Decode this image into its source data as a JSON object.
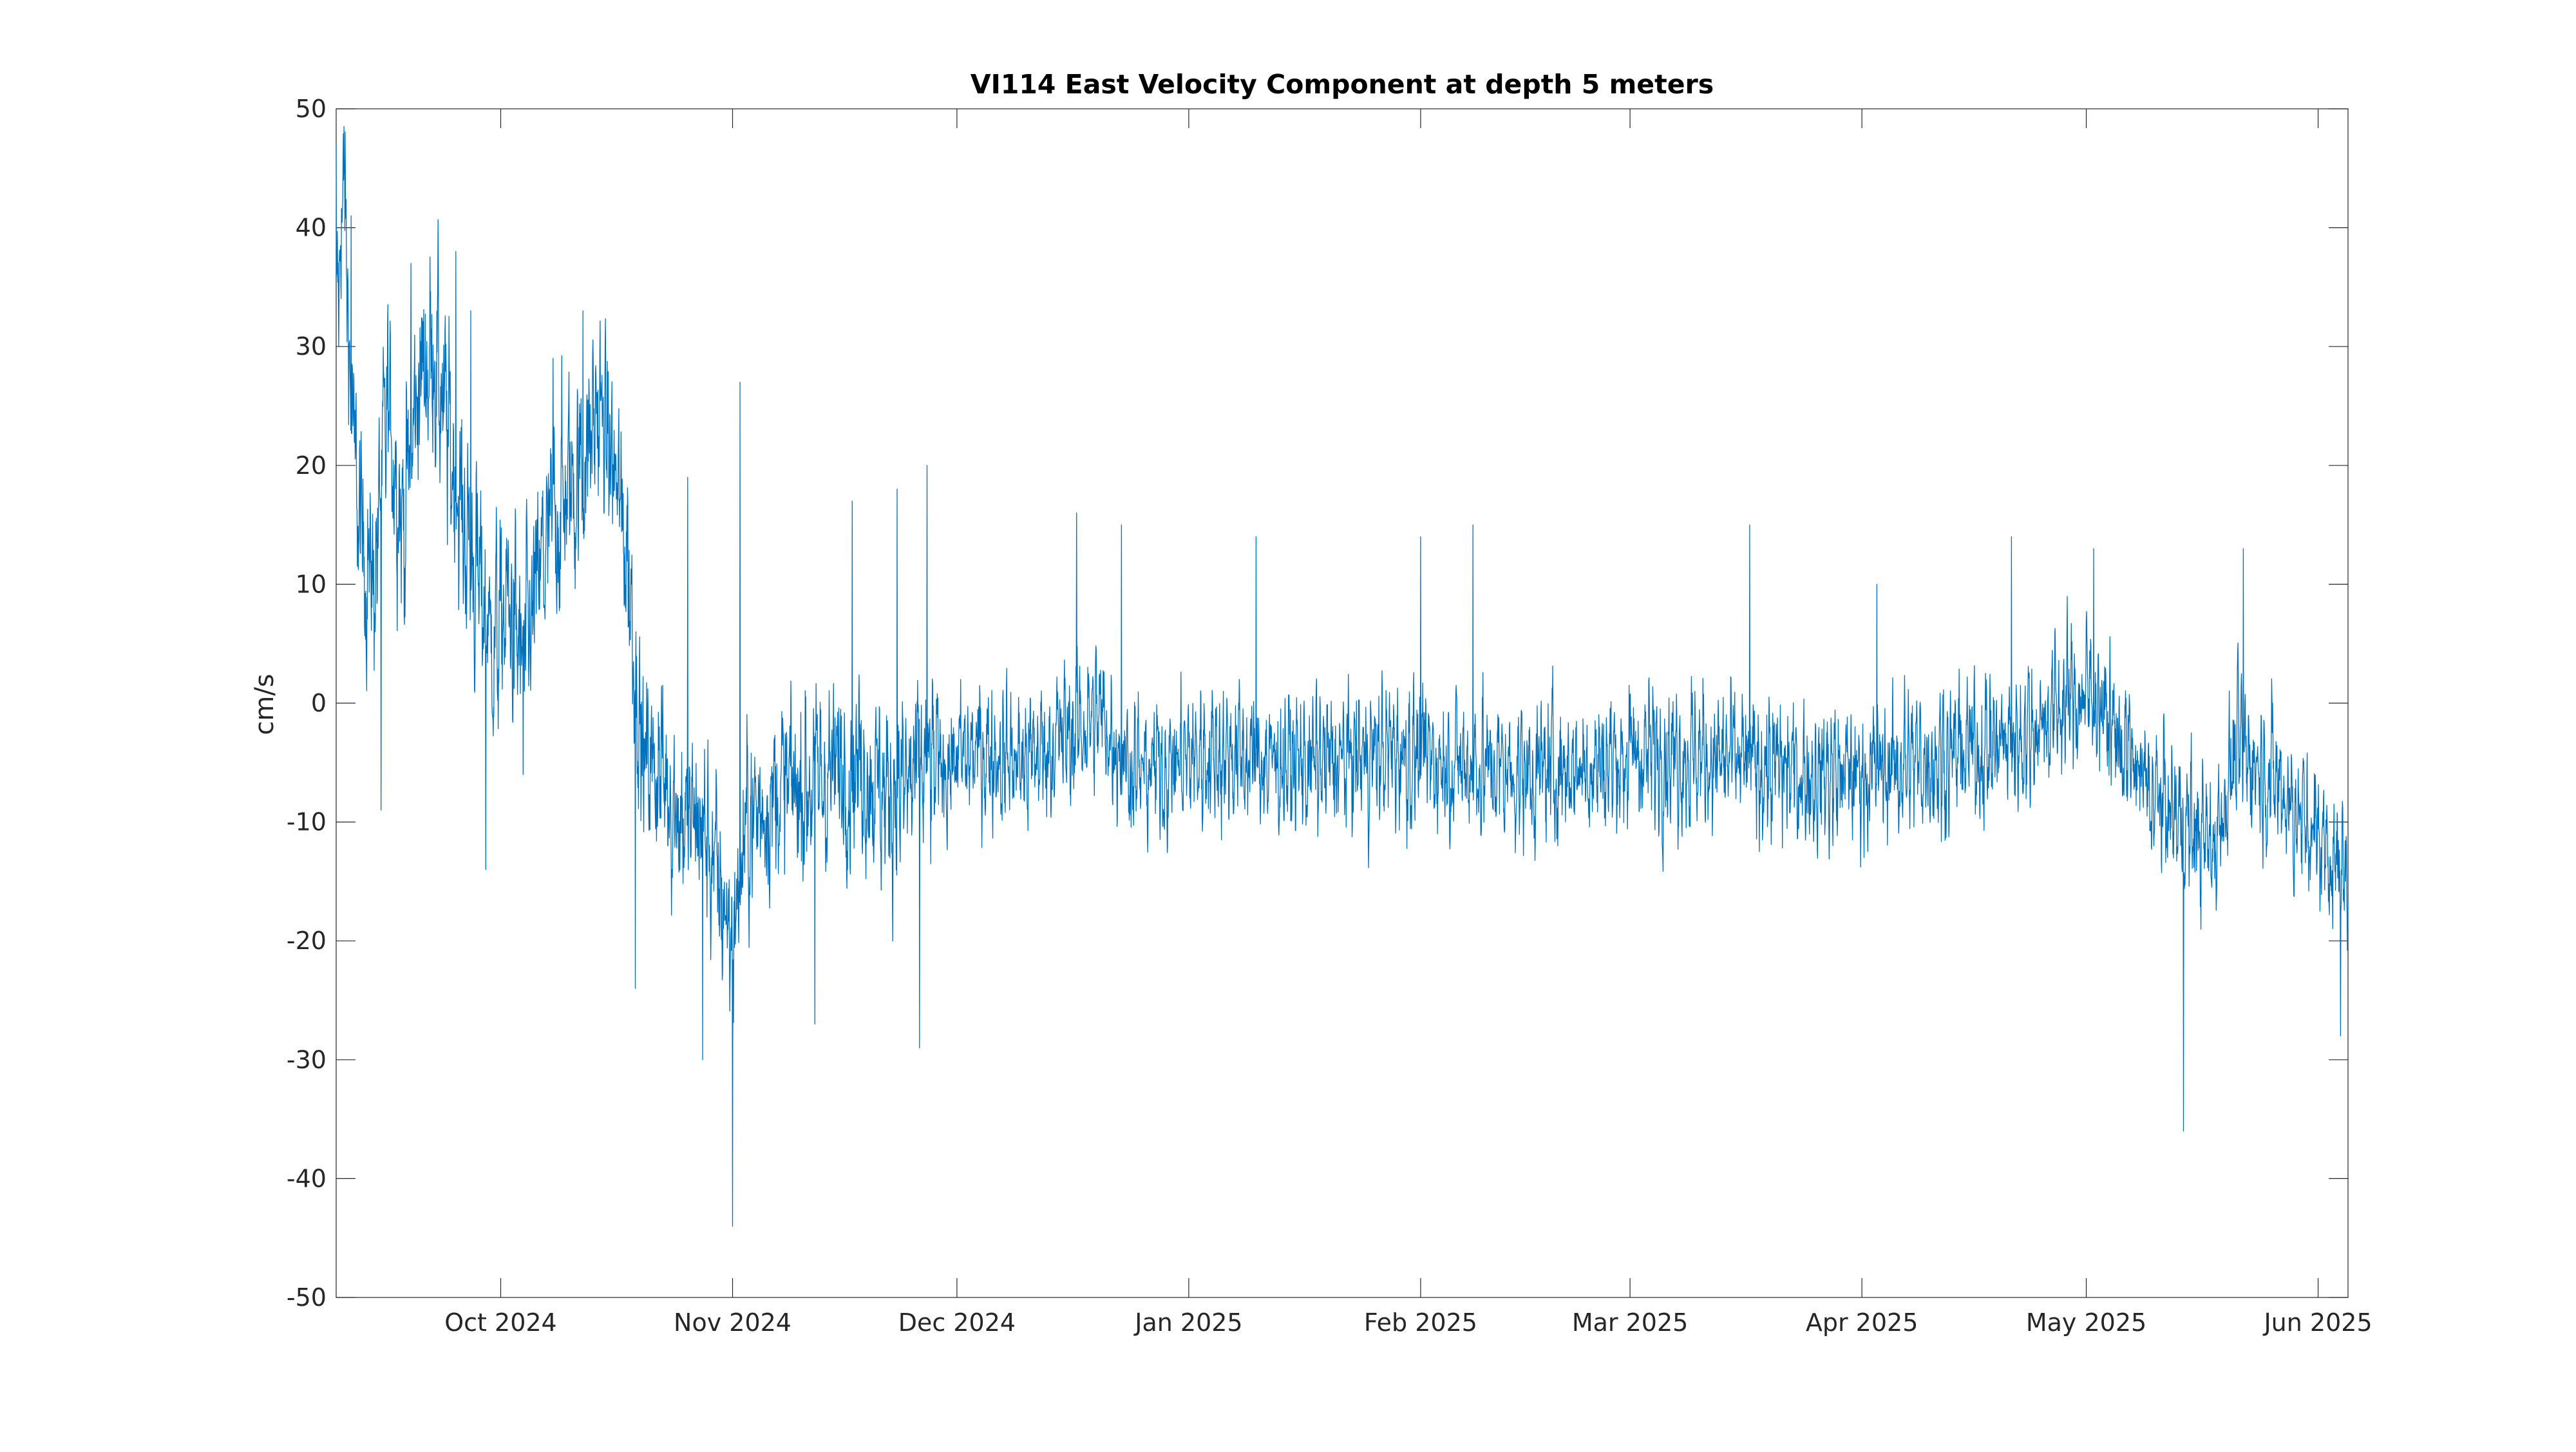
{
  "chart_data": {
    "type": "line",
    "title": "VI114 East Velocity Component at depth 5 meters",
    "xlabel": "",
    "ylabel": "cm/s",
    "x_range": [
      "2024-09-09",
      "2025-06-05"
    ],
    "ylim": [
      -50,
      50
    ],
    "y_ticks": [
      50,
      40,
      30,
      20,
      10,
      0,
      -10,
      -20,
      -30,
      -40,
      -50
    ],
    "y_tick_labels": [
      "50",
      "40",
      "30",
      "20",
      "10",
      "0",
      "-10",
      "-20",
      "-30",
      "-40",
      "-50"
    ],
    "x_ticks": [
      {
        "date": "2024-10-01",
        "label": "Oct 2024"
      },
      {
        "date": "2024-11-01",
        "label": "Nov 2024"
      },
      {
        "date": "2024-12-01",
        "label": "Dec 2024"
      },
      {
        "date": "2025-01-01",
        "label": "Jan 2025"
      },
      {
        "date": "2025-02-01",
        "label": "Feb 2025"
      },
      {
        "date": "2025-03-01",
        "label": "Mar 2025"
      },
      {
        "date": "2025-04-01",
        "label": "Apr 2025"
      },
      {
        "date": "2025-05-01",
        "label": "May 2025"
      },
      {
        "date": "2025-06-01",
        "label": "Jun 2025"
      }
    ],
    "grid": false,
    "box": true,
    "series": [
      {
        "name": "",
        "color": "#0072BD",
        "points": [
          [
            "2024-09-09",
            30
          ],
          [
            "2024-09-10",
            45
          ],
          [
            "2024-09-11",
            25
          ],
          [
            "2024-09-12",
            15
          ],
          [
            "2024-09-14",
            10
          ],
          [
            "2024-09-16",
            25
          ],
          [
            "2024-09-18",
            15
          ],
          [
            "2024-09-20",
            27
          ],
          [
            "2024-09-22",
            30
          ],
          [
            "2024-09-24",
            22
          ],
          [
            "2024-09-26",
            15
          ],
          [
            "2024-09-28",
            10
          ],
          [
            "2024-09-30",
            5
          ],
          [
            "2024-10-02",
            8
          ],
          [
            "2024-10-04",
            3
          ],
          [
            "2024-10-06",
            10
          ],
          [
            "2024-10-08",
            15
          ],
          [
            "2024-10-10",
            18
          ],
          [
            "2024-10-12",
            20
          ],
          [
            "2024-10-14",
            25
          ],
          [
            "2024-10-16",
            20
          ],
          [
            "2024-10-18",
            12
          ],
          [
            "2024-10-20",
            -5
          ],
          [
            "2024-10-22",
            -5
          ],
          [
            "2024-10-24",
            -8
          ],
          [
            "2024-10-26",
            -10
          ],
          [
            "2024-10-28",
            -10
          ],
          [
            "2024-10-30",
            -15
          ],
          [
            "2024-11-01",
            -20
          ],
          [
            "2024-11-03",
            -10
          ],
          [
            "2024-11-06",
            -8
          ],
          [
            "2024-11-10",
            -7
          ],
          [
            "2024-11-14",
            -6
          ],
          [
            "2024-11-18",
            -5
          ],
          [
            "2024-11-22",
            -8
          ],
          [
            "2024-11-26",
            -6
          ],
          [
            "2024-11-30",
            -5
          ],
          [
            "2024-12-05",
            -4
          ],
          [
            "2024-12-10",
            -5
          ],
          [
            "2024-12-15",
            -3
          ],
          [
            "2024-12-20",
            -1
          ],
          [
            "2024-12-25",
            -6
          ],
          [
            "2024-12-30",
            -5
          ],
          [
            "2025-01-05",
            -4
          ],
          [
            "2025-01-12",
            -5
          ],
          [
            "2025-01-20",
            -5
          ],
          [
            "2025-01-28",
            -4
          ],
          [
            "2025-02-05",
            -5
          ],
          [
            "2025-02-15",
            -6
          ],
          [
            "2025-02-25",
            -5
          ],
          [
            "2025-03-05",
            -4
          ],
          [
            "2025-03-15",
            -5
          ],
          [
            "2025-03-25",
            -6
          ],
          [
            "2025-04-01",
            -6
          ],
          [
            "2025-04-08",
            -5
          ],
          [
            "2025-04-15",
            -4
          ],
          [
            "2025-04-22",
            -3
          ],
          [
            "2025-04-28",
            0
          ],
          [
            "2025-05-02",
            1
          ],
          [
            "2025-05-06",
            -4
          ],
          [
            "2025-05-10",
            -8
          ],
          [
            "2025-05-14",
            -10
          ],
          [
            "2025-05-18",
            -12
          ],
          [
            "2025-05-21",
            -4
          ],
          [
            "2025-05-24",
            -5
          ],
          [
            "2025-05-27",
            -7
          ],
          [
            "2025-05-30",
            -10
          ],
          [
            "2025-06-02",
            -12
          ],
          [
            "2025-06-05",
            -15
          ]
        ],
        "peaks": [
          [
            "2024-09-09",
            47
          ],
          [
            "2024-09-10",
            44
          ],
          [
            "2024-09-11",
            41
          ],
          [
            "2024-09-13",
            5
          ],
          [
            "2024-09-15",
            -9
          ],
          [
            "2024-09-19",
            37
          ],
          [
            "2024-09-25",
            38
          ],
          [
            "2024-09-27",
            33
          ],
          [
            "2024-09-29",
            -14
          ],
          [
            "2024-10-04",
            -6
          ],
          [
            "2024-10-08",
            29
          ],
          [
            "2024-10-12",
            33
          ],
          [
            "2024-10-18",
            17
          ],
          [
            "2024-10-19",
            -24
          ],
          [
            "2024-10-26",
            19
          ],
          [
            "2024-10-28",
            -30
          ],
          [
            "2024-11-01",
            -44
          ],
          [
            "2024-11-02",
            27
          ],
          [
            "2024-11-12",
            -27
          ],
          [
            "2024-11-17",
            17
          ],
          [
            "2024-11-23",
            18
          ],
          [
            "2024-11-26",
            -29
          ],
          [
            "2024-11-27",
            20
          ],
          [
            "2024-12-17",
            16
          ],
          [
            "2024-12-23",
            15
          ],
          [
            "2025-01-10",
            14
          ],
          [
            "2025-02-01",
            14
          ],
          [
            "2025-02-08",
            15
          ],
          [
            "2025-03-17",
            15
          ],
          [
            "2025-04-03",
            10
          ],
          [
            "2025-04-21",
            14
          ],
          [
            "2025-05-02",
            13
          ],
          [
            "2025-05-14",
            -36
          ],
          [
            "2025-05-22",
            13
          ],
          [
            "2025-06-04",
            -28
          ]
        ]
      }
    ]
  }
}
